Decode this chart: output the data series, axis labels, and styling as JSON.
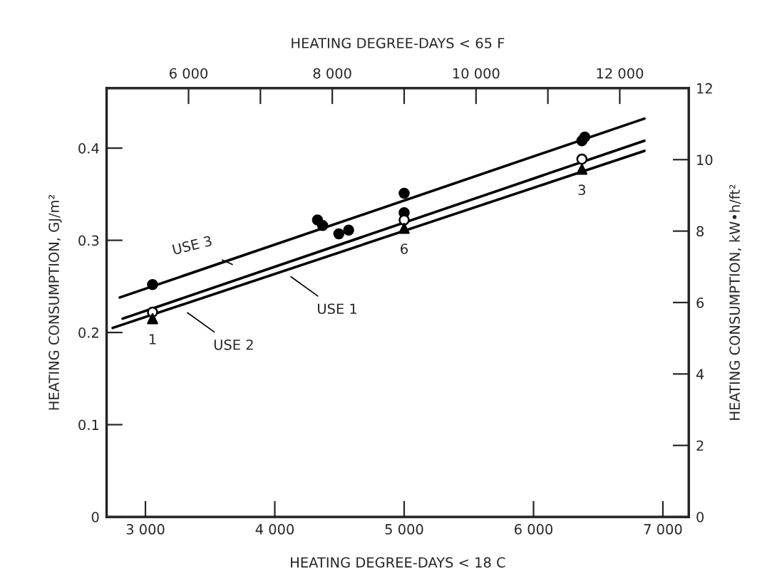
{
  "chart_data": {
    "type": "scatter",
    "xlabel": "HEATING DEGREE-DAYS < 18 C",
    "x2label": "HEATING DEGREE-DAYS < 65 F",
    "ylabel": "HEATING CONSUMPTION, GJ/m²",
    "y2label": "HEATING CONSUMPTION, kW•h/ft²",
    "xlim": [
      2700,
      7200
    ],
    "xticks": [
      {
        "value": 3000,
        "label": "3 000"
      },
      {
        "value": 4000,
        "label": "4 000"
      },
      {
        "value": 5000,
        "label": "5 000"
      },
      {
        "value": 6000,
        "label": "6 000"
      },
      {
        "value": 7000,
        "label": "7 000"
      }
    ],
    "x2lim": [
      4860,
      12960
    ],
    "x2ticks": [
      {
        "value": 6000,
        "label": "6 000"
      },
      {
        "value": 7000,
        "label": null
      },
      {
        "value": 8000,
        "label": "8 000"
      },
      {
        "value": 9000,
        "label": null
      },
      {
        "value": 10000,
        "label": "10 000"
      },
      {
        "value": 11000,
        "label": null
      },
      {
        "value": 12000,
        "label": "12 000"
      }
    ],
    "ylim": [
      0,
      0.465
    ],
    "yticks": [
      0,
      0.1,
      0.2,
      0.3,
      0.4
    ],
    "y2lim": [
      0,
      12
    ],
    "y2ticks": [
      0,
      2,
      4,
      6,
      8,
      10,
      12
    ],
    "grid": false,
    "legend": false,
    "series": [
      {
        "type": "line",
        "color": "#000000",
        "x": [
          2802,
          6857
        ],
        "values": [
          0.238,
          0.432
        ]
      },
      {
        "type": "line",
        "color": "#000000",
        "x": [
          2824,
          6857
        ],
        "values": [
          0.215,
          0.408
        ]
      },
      {
        "type": "line",
        "color": "#000000",
        "x": [
          2747,
          6857
        ],
        "values": [
          0.205,
          0.397
        ]
      },
      {
        "marker": "circle",
        "color": "#000000",
        "x": [
          3055,
          4330,
          4370,
          4495,
          4571,
          5000,
          5000,
          6374,
          6396
        ],
        "values": [
          0.252,
          0.322,
          0.316,
          0.307,
          0.311,
          0.351,
          0.33,
          0.408,
          0.412
        ]
      },
      {
        "marker": "circle",
        "color": "#ffffff",
        "x": [
          3055,
          5000,
          6374
        ],
        "values": [
          0.222,
          0.322,
          0.388
        ]
      },
      {
        "marker": "triangle",
        "color": "#000000",
        "x": [
          3055,
          5000,
          6374
        ],
        "values": [
          0.215,
          0.313,
          0.377
        ]
      }
    ],
    "annotations": [
      {
        "text": "USE 3",
        "x": 3700,
        "y": 0.272
      },
      {
        "text": "USE 1",
        "x": 4100,
        "y": 0.263
      },
      {
        "text": "USE 2",
        "x": 3300,
        "y": 0.224
      },
      {
        "text": "1",
        "x": 3055,
        "y": 0.215
      },
      {
        "text": "6",
        "x": 5000,
        "y": 0.313
      },
      {
        "text": "3",
        "x": 6374,
        "y": 0.377
      }
    ]
  }
}
